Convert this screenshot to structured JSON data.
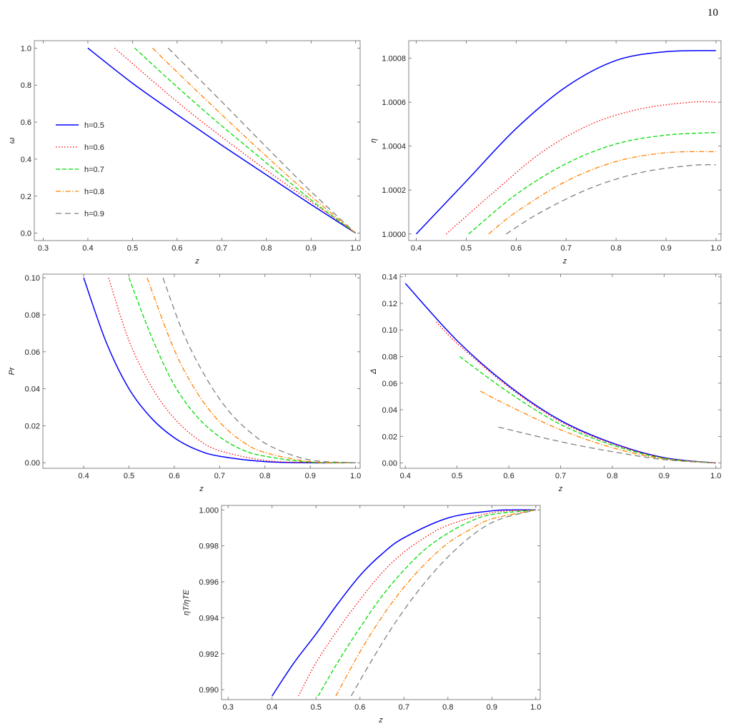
{
  "page": {
    "number": "10"
  },
  "legend": {
    "entries": [
      "h=0.5",
      "h=0.6",
      "h=0.7",
      "h=0.8",
      "h=0.9"
    ]
  },
  "series_styles": [
    {
      "color": "#0000ff",
      "dash": ""
    },
    {
      "color": "#ff0000",
      "dash": "1.5,2.5"
    },
    {
      "color": "#00dd00",
      "dash": "6,3"
    },
    {
      "color": "#ff8000",
      "dash": "7,2.5,1.5,2.5"
    },
    {
      "color": "#808080",
      "dash": "8,5"
    }
  ],
  "chart_data": [
    {
      "type": "line",
      "xlabel": "z",
      "ylabel": "ω",
      "xlim": [
        0.28,
        1.01
      ],
      "ylim": [
        -0.04,
        1.04
      ],
      "xticks": [
        "0.3",
        "0.4",
        "0.5",
        "0.6",
        "0.7",
        "0.8",
        "0.9",
        "1.0"
      ],
      "yticks": [
        "0.0",
        "0.2",
        "0.4",
        "0.6",
        "0.8",
        "1.0"
      ],
      "legend": "left",
      "series": [
        {
          "name": "h=0.5",
          "x": [
            0.4,
            0.5,
            0.6,
            0.7,
            0.8,
            0.9,
            1.0
          ],
          "y": [
            1.0,
            0.81,
            0.64,
            0.475,
            0.315,
            0.155,
            0.0
          ]
        },
        {
          "name": "h=0.6",
          "x": [
            0.46,
            0.6,
            0.7,
            0.8,
            0.9,
            1.0
          ],
          "y": [
            1.0,
            0.71,
            0.52,
            0.34,
            0.17,
            0.0
          ]
        },
        {
          "name": "h=0.7",
          "x": [
            0.505,
            0.6,
            0.7,
            0.8,
            0.9,
            1.0
          ],
          "y": [
            1.0,
            0.79,
            0.58,
            0.38,
            0.18,
            0.0
          ]
        },
        {
          "name": "h=0.8",
          "x": [
            0.545,
            0.6,
            0.7,
            0.8,
            0.9,
            1.0
          ],
          "y": [
            1.0,
            0.87,
            0.64,
            0.415,
            0.2,
            0.0
          ]
        },
        {
          "name": "h=0.9",
          "x": [
            0.58,
            0.7,
            0.8,
            0.9,
            1.0
          ],
          "y": [
            1.0,
            0.71,
            0.465,
            0.225,
            0.0
          ]
        }
      ]
    },
    {
      "type": "line",
      "xlabel": "z",
      "ylabel": "η",
      "xlim": [
        0.385,
        1.01
      ],
      "ylim": [
        0.99997,
        1.00088
      ],
      "xticks": [
        "0.4",
        "0.5",
        "0.6",
        "0.7",
        "0.8",
        "0.9",
        "1.0"
      ],
      "yticks": [
        "1.0000",
        "1.0002",
        "1.0004",
        "1.0006",
        "1.0008"
      ],
      "series": [
        {
          "name": "h=0.5",
          "x": [
            0.4,
            0.5,
            0.6,
            0.7,
            0.8,
            0.9,
            1.0
          ],
          "y": [
            1.0,
            1.00024,
            1.00048,
            1.00067,
            1.00079,
            1.00083,
            1.000835
          ]
        },
        {
          "name": "h=0.6",
          "x": [
            0.46,
            0.55,
            0.65,
            0.75,
            0.85,
            0.95,
            1.0
          ],
          "y": [
            1.0,
            1.00018,
            1.00037,
            1.0005,
            1.00057,
            1.0006,
            1.0006
          ]
        },
        {
          "name": "h=0.7",
          "x": [
            0.505,
            0.6,
            0.7,
            0.8,
            0.9,
            1.0
          ],
          "y": [
            1.0,
            1.00018,
            1.00032,
            1.00041,
            1.00045,
            1.000462
          ]
        },
        {
          "name": "h=0.8",
          "x": [
            0.545,
            0.6,
            0.7,
            0.8,
            0.9,
            1.0
          ],
          "y": [
            1.0,
            1.0001,
            1.00024,
            1.00033,
            1.00037,
            1.000375
          ]
        },
        {
          "name": "h=0.9",
          "x": [
            0.58,
            0.65,
            0.75,
            0.85,
            0.95,
            1.0
          ],
          "y": [
            1.0,
            1.0001,
            1.00021,
            1.00028,
            1.000312,
            1.000315
          ]
        }
      ]
    },
    {
      "type": "line",
      "xlabel": "z",
      "ylabel": "Pr",
      "xlim": [
        0.31,
        1.01
      ],
      "ylim": [
        -0.003,
        0.102
      ],
      "xticks": [
        "0.4",
        "0.5",
        "0.6",
        "0.7",
        "0.8",
        "0.9",
        "1.0"
      ],
      "yticks": [
        "0.00",
        "0.02",
        "0.04",
        "0.06",
        "0.08",
        "0.10"
      ],
      "series": [
        {
          "name": "h=0.5",
          "x": [
            0.4,
            0.45,
            0.5,
            0.55,
            0.6,
            0.65,
            0.7,
            0.8,
            0.9,
            1.0
          ],
          "y": [
            0.1,
            0.065,
            0.04,
            0.024,
            0.0135,
            0.007,
            0.0035,
            0.0006,
            0.0,
            0.0
          ]
        },
        {
          "name": "h=0.6",
          "x": [
            0.455,
            0.5,
            0.55,
            0.6,
            0.65,
            0.7,
            0.8,
            0.9,
            1.0
          ],
          "y": [
            0.1,
            0.066,
            0.041,
            0.024,
            0.013,
            0.0065,
            0.0013,
            0.0001,
            0.0
          ]
        },
        {
          "name": "h=0.7",
          "x": [
            0.5,
            0.55,
            0.6,
            0.65,
            0.7,
            0.75,
            0.8,
            0.9,
            1.0
          ],
          "y": [
            0.1,
            0.068,
            0.042,
            0.025,
            0.014,
            0.007,
            0.0035,
            0.0003,
            0.0
          ]
        },
        {
          "name": "h=0.8",
          "x": [
            0.54,
            0.6,
            0.65,
            0.7,
            0.75,
            0.8,
            0.9,
            1.0
          ],
          "y": [
            0.1,
            0.061,
            0.038,
            0.022,
            0.0115,
            0.0055,
            0.0006,
            0.0
          ]
        },
        {
          "name": "h=0.9",
          "x": [
            0.575,
            0.62,
            0.67,
            0.72,
            0.77,
            0.82,
            0.9,
            1.0
          ],
          "y": [
            0.1,
            0.07,
            0.046,
            0.028,
            0.016,
            0.008,
            0.0015,
            0.0
          ]
        }
      ]
    },
    {
      "type": "line",
      "xlabel": "z",
      "ylabel": "Δ",
      "xlim": [
        0.39,
        1.01
      ],
      "ylim": [
        -0.004,
        0.142
      ],
      "xticks": [
        "0.4",
        "0.5",
        "0.6",
        "0.7",
        "0.8",
        "0.9",
        "1.0"
      ],
      "yticks": [
        "0.00",
        "0.02",
        "0.04",
        "0.06",
        "0.08",
        "0.10",
        "0.12",
        "0.14"
      ],
      "series": [
        {
          "name": "h=0.5",
          "x": [
            0.4,
            0.5,
            0.6,
            0.7,
            0.8,
            0.9,
            1.0
          ],
          "y": [
            0.135,
            0.092,
            0.058,
            0.032,
            0.015,
            0.004,
            0.0
          ]
        },
        {
          "name": "h=0.6",
          "x": [
            0.46,
            0.5,
            0.6,
            0.7,
            0.8,
            0.9,
            1.0
          ],
          "y": [
            0.106,
            0.09,
            0.057,
            0.031,
            0.0145,
            0.0038,
            0.0
          ]
        },
        {
          "name": "h=0.7",
          "x": [
            0.505,
            0.6,
            0.7,
            0.8,
            0.9,
            1.0
          ],
          "y": [
            0.08,
            0.053,
            0.029,
            0.0135,
            0.0035,
            0.0
          ]
        },
        {
          "name": "h=0.8",
          "x": [
            0.545,
            0.6,
            0.7,
            0.8,
            0.9,
            1.0
          ],
          "y": [
            0.054,
            0.043,
            0.025,
            0.0115,
            0.003,
            0.0
          ]
        },
        {
          "name": "h=0.9",
          "x": [
            0.58,
            0.7,
            0.8,
            0.9,
            1.0
          ],
          "y": [
            0.027,
            0.016,
            0.0085,
            0.0025,
            0.0
          ]
        }
      ]
    },
    {
      "type": "line",
      "xlabel": "z",
      "ylabel": "ηT/ηTE",
      "xlim": [
        0.285,
        1.01
      ],
      "ylim": [
        0.98945,
        1.00025
      ],
      "xticks": [
        "0.3",
        "0.4",
        "0.5",
        "0.6",
        "0.7",
        "0.8",
        "0.9",
        "1.0"
      ],
      "yticks": [
        "0.990",
        "0.992",
        "0.994",
        "0.996",
        "0.998",
        "1.000"
      ],
      "series": [
        {
          "name": "h=0.5",
          "x": [
            0.4,
            0.45,
            0.5,
            0.55,
            0.6,
            0.65,
            0.7,
            0.8,
            0.9,
            0.95,
            1.0
          ],
          "y": [
            0.98965,
            0.9915,
            0.9931,
            0.9948,
            0.99635,
            0.99755,
            0.99845,
            0.99955,
            0.99995,
            1.0,
            1.0
          ]
        },
        {
          "name": "h=0.6",
          "x": [
            0.46,
            0.5,
            0.55,
            0.6,
            0.65,
            0.7,
            0.75,
            0.8,
            0.9,
            1.0
          ],
          "y": [
            0.98965,
            0.9915,
            0.99335,
            0.995,
            0.9965,
            0.99765,
            0.9985,
            0.99915,
            0.99985,
            1.0
          ]
        },
        {
          "name": "h=0.7",
          "x": [
            0.505,
            0.55,
            0.6,
            0.65,
            0.7,
            0.75,
            0.8,
            0.85,
            0.9,
            1.0
          ],
          "y": [
            0.98965,
            0.99155,
            0.99345,
            0.9952,
            0.99665,
            0.99785,
            0.9987,
            0.99935,
            0.99975,
            1.0
          ]
        },
        {
          "name": "h=0.8",
          "x": [
            0.545,
            0.6,
            0.65,
            0.7,
            0.75,
            0.8,
            0.85,
            0.9,
            1.0
          ],
          "y": [
            0.98965,
            0.9921,
            0.99405,
            0.9957,
            0.99705,
            0.99815,
            0.9989,
            0.9995,
            1.0
          ]
        },
        {
          "name": "h=0.9",
          "x": [
            0.58,
            0.62,
            0.67,
            0.72,
            0.77,
            0.82,
            0.87,
            0.92,
            1.0
          ],
          "y": [
            0.98965,
            0.99135,
            0.99335,
            0.9951,
            0.9966,
            0.99785,
            0.99885,
            0.9995,
            1.0
          ]
        }
      ]
    }
  ]
}
